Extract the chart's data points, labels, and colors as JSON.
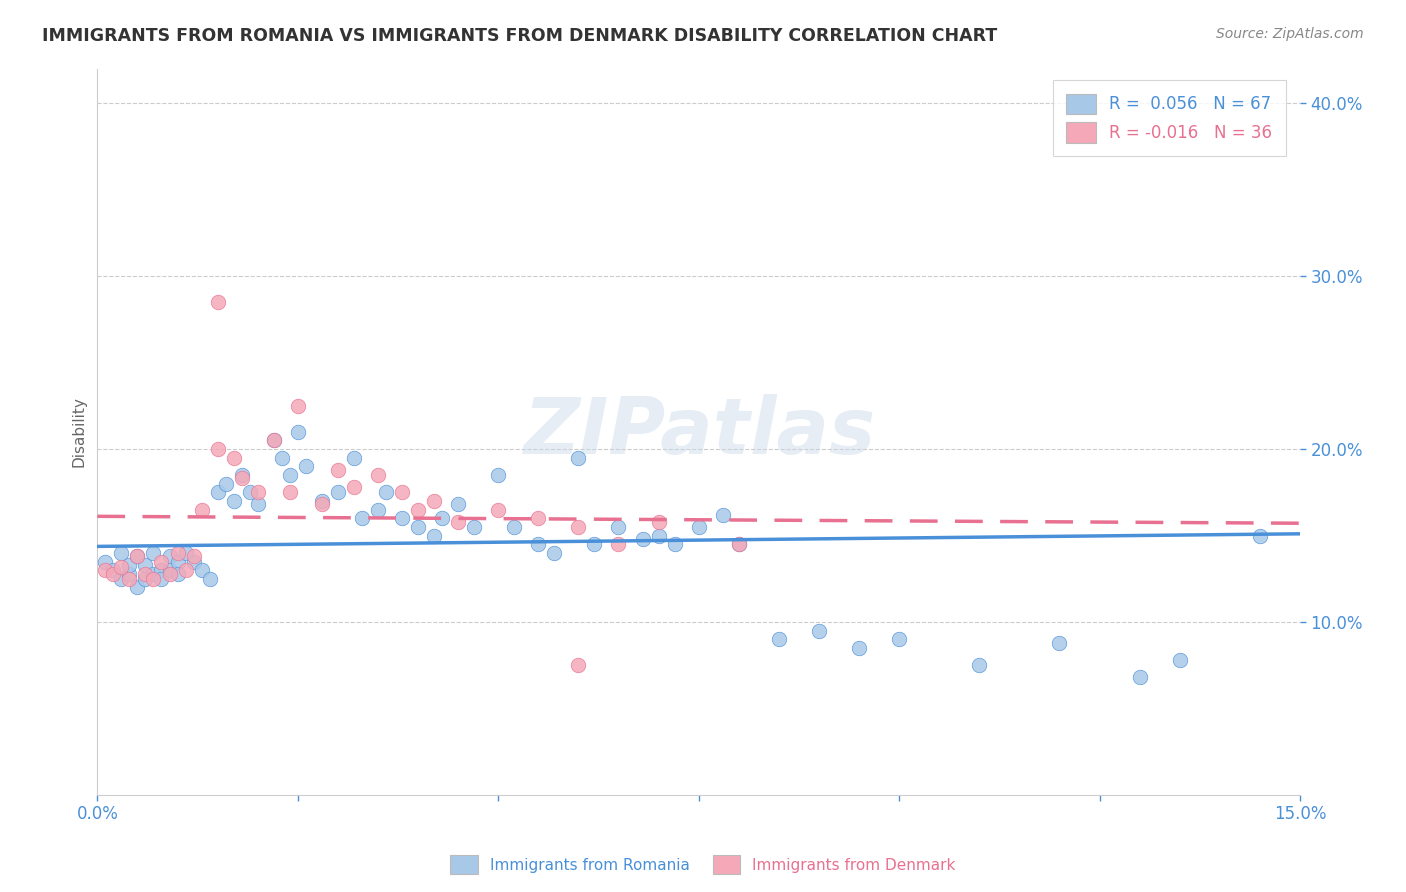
{
  "title": "IMMIGRANTS FROM ROMANIA VS IMMIGRANTS FROM DENMARK DISABILITY CORRELATION CHART",
  "source": "Source: ZipAtlas.com",
  "ylabel": "Disability",
  "xlim": [
    0.0,
    0.15
  ],
  "ylim": [
    0.0,
    0.42
  ],
  "romania_color": "#a8c8e8",
  "denmark_color": "#f4a8b8",
  "romania_line_color": "#4a90d9",
  "denmark_line_color": "#e87090",
  "romania_R": 0.056,
  "romania_N": 67,
  "denmark_R": -0.016,
  "denmark_N": 36,
  "romania_x": [
    0.001,
    0.002,
    0.003,
    0.003,
    0.004,
    0.004,
    0.005,
    0.005,
    0.006,
    0.006,
    0.007,
    0.007,
    0.008,
    0.008,
    0.009,
    0.009,
    0.01,
    0.01,
    0.011,
    0.012,
    0.013,
    0.014,
    0.015,
    0.016,
    0.017,
    0.018,
    0.019,
    0.02,
    0.022,
    0.023,
    0.024,
    0.025,
    0.026,
    0.028,
    0.03,
    0.032,
    0.033,
    0.035,
    0.036,
    0.038,
    0.04,
    0.042,
    0.043,
    0.045,
    0.047,
    0.05,
    0.052,
    0.055,
    0.057,
    0.06,
    0.062,
    0.065,
    0.068,
    0.07,
    0.072,
    0.075,
    0.078,
    0.08,
    0.085,
    0.09,
    0.095,
    0.1,
    0.11,
    0.12,
    0.13,
    0.135,
    0.145
  ],
  "romania_y": [
    0.135,
    0.13,
    0.125,
    0.14,
    0.128,
    0.133,
    0.12,
    0.138,
    0.125,
    0.133,
    0.128,
    0.14,
    0.13,
    0.125,
    0.138,
    0.13,
    0.135,
    0.128,
    0.14,
    0.135,
    0.13,
    0.125,
    0.175,
    0.18,
    0.17,
    0.185,
    0.175,
    0.168,
    0.205,
    0.195,
    0.185,
    0.21,
    0.19,
    0.17,
    0.175,
    0.195,
    0.16,
    0.165,
    0.175,
    0.16,
    0.155,
    0.15,
    0.16,
    0.168,
    0.155,
    0.185,
    0.155,
    0.145,
    0.14,
    0.195,
    0.145,
    0.155,
    0.148,
    0.15,
    0.145,
    0.155,
    0.162,
    0.145,
    0.09,
    0.095,
    0.085,
    0.09,
    0.075,
    0.088,
    0.068,
    0.078,
    0.15
  ],
  "denmark_x": [
    0.001,
    0.002,
    0.003,
    0.004,
    0.005,
    0.006,
    0.007,
    0.008,
    0.009,
    0.01,
    0.011,
    0.012,
    0.013,
    0.015,
    0.017,
    0.018,
    0.02,
    0.022,
    0.024,
    0.025,
    0.028,
    0.03,
    0.032,
    0.035,
    0.038,
    0.04,
    0.042,
    0.045,
    0.05,
    0.055,
    0.06,
    0.065,
    0.07,
    0.08,
    0.06,
    0.015
  ],
  "denmark_y": [
    0.13,
    0.128,
    0.132,
    0.125,
    0.138,
    0.128,
    0.125,
    0.135,
    0.128,
    0.14,
    0.13,
    0.138,
    0.165,
    0.2,
    0.195,
    0.183,
    0.175,
    0.205,
    0.175,
    0.225,
    0.168,
    0.188,
    0.178,
    0.185,
    0.175,
    0.165,
    0.17,
    0.158,
    0.165,
    0.16,
    0.155,
    0.145,
    0.158,
    0.145,
    0.075,
    0.285
  ],
  "watermark": "ZIPatlas",
  "background_color": "#ffffff",
  "grid_color": "#cccccc",
  "title_color": "#333333",
  "tick_color": "#4a90d9"
}
